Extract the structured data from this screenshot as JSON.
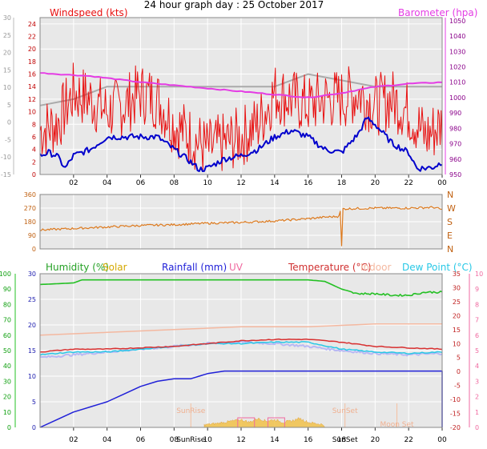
{
  "page_title": "24 hour graph day : 25 October 2017",
  "colors": {
    "wind": "#e81010",
    "gust": "#ff0000",
    "avg": "#0000cc",
    "max": "#aaaaaa",
    "baro": "#e43ce4",
    "dir": "#dd7a1e",
    "hum": "#24c024",
    "solar": "#f2c24a",
    "rain": "#2020d8",
    "uv": "#f06aa0",
    "temp": "#d83030",
    "indoor": "#f4b8a0",
    "dew": "#28c8e6",
    "grid": "#ffffff",
    "plot_bg": "#e8e8e8"
  },
  "chart_data": [
    {
      "type": "line",
      "name": "wind-baro",
      "title": "24 hour graph day : 25 October 2017",
      "left_label": "Windspeed (kts)",
      "right_label": "Barometer (hpa)",
      "x_ticks": [
        "02",
        "04",
        "06",
        "08",
        "10",
        "12",
        "14",
        "16",
        "18",
        "20",
        "22",
        "00"
      ],
      "x_range_hours": [
        0,
        24
      ],
      "y_left_inner_ticks": [
        0,
        2,
        4,
        6,
        8,
        10,
        12,
        14,
        16,
        18,
        20,
        22,
        24
      ],
      "y_left_outer_ticks": [
        -15,
        -10,
        -5,
        0,
        5,
        10,
        15,
        20,
        25,
        30
      ],
      "y_right_ticks": [
        950,
        960,
        970,
        980,
        990,
        1000,
        1010,
        1020,
        1030,
        1040,
        1050
      ],
      "ylim_left": [
        0,
        25
      ],
      "ylim_right": [
        950,
        1052
      ],
      "series": [
        {
          "key": "gust",
          "x": [
            0,
            1,
            2,
            3,
            4,
            5,
            6,
            7,
            8,
            9,
            10,
            11,
            12,
            13,
            14,
            15,
            16,
            17,
            18,
            19,
            20,
            21,
            22,
            23,
            24
          ],
          "y": [
            7,
            8,
            13,
            12,
            10,
            11,
            13,
            12,
            8,
            6,
            4,
            5,
            6,
            8,
            13,
            12,
            11,
            12,
            12,
            13,
            11,
            12,
            10,
            6,
            8
          ]
        },
        {
          "key": "avg",
          "x": [
            0,
            0.5,
            1,
            1.5,
            2,
            3,
            4,
            5,
            6,
            7,
            8,
            9,
            9.5,
            10,
            11,
            12,
            13,
            14,
            15,
            16,
            17,
            18,
            18.5,
            19,
            19.5,
            20,
            21,
            22,
            22.5,
            23,
            23.5,
            24
          ],
          "y": [
            3,
            3.5,
            3,
            1,
            3,
            4,
            6,
            6,
            6,
            6,
            4,
            2,
            0.8,
            1,
            2.5,
            3,
            4,
            6,
            7,
            6,
            4,
            3.5,
            5,
            6.5,
            9,
            8,
            5,
            3.5,
            1,
            1,
            1.2,
            2
          ]
        },
        {
          "key": "max",
          "x": [
            0,
            2,
            4,
            6,
            8,
            10,
            12,
            14,
            16,
            18,
            20,
            22,
            24
          ],
          "y": [
            11,
            12,
            14,
            14,
            14,
            14,
            14,
            14,
            16,
            15,
            14,
            14,
            14
          ]
        },
        {
          "key": "baro",
          "x": [
            0,
            3,
            6,
            9,
            12,
            15,
            16,
            18,
            20,
            22,
            24
          ],
          "y": [
            1016,
            1014,
            1010,
            1007,
            1004,
            1001,
            1000,
            1003,
            1007,
            1009,
            1010
          ]
        }
      ]
    },
    {
      "type": "line",
      "name": "wind-direction",
      "x_ticks": [
        "02",
        "04",
        "06",
        "08",
        "10",
        "12",
        "14",
        "16",
        "18",
        "20",
        "22",
        "00"
      ],
      "x_range_hours": [
        0,
        24
      ],
      "y_left_ticks": [
        0,
        90,
        180,
        270,
        360
      ],
      "y_right_labels": [
        "N",
        "W",
        "S",
        "E",
        "N"
      ],
      "ylim": [
        0,
        360
      ],
      "series": [
        {
          "key": "dir",
          "x": [
            0,
            2,
            4,
            6,
            8,
            10,
            12,
            14,
            16,
            17,
            17.8,
            18,
            20,
            22,
            23.5,
            24
          ],
          "y": [
            125,
            135,
            145,
            155,
            160,
            170,
            175,
            185,
            200,
            210,
            215,
            265,
            270,
            270,
            275,
            260
          ]
        }
      ]
    },
    {
      "type": "line",
      "name": "multi",
      "legend": [
        "Humidity (%)",
        "Solar",
        "Rainfall (mm)",
        "UV",
        "Temperature (°C)",
        "Indoor",
        "Dew Point (°C)"
      ],
      "x_ticks": [
        "02",
        "04",
        "06",
        "08",
        "10",
        "12",
        "14",
        "16",
        "18",
        "20",
        "22",
        "00"
      ],
      "x_range_hours": [
        0,
        24
      ],
      "markers": [
        {
          "label": "SunRise",
          "x": 9.0
        },
        {
          "label": "SunSet",
          "x": 18.2
        },
        {
          "label": "Moon Set",
          "x": 21.3
        }
      ],
      "bottom_marker_labels": [
        "SunRise",
        "SunSet"
      ],
      "y_hum_ticks": [
        0,
        10,
        20,
        30,
        40,
        50,
        60,
        70,
        80,
        90,
        100
      ],
      "y_rain_ticks": [
        0,
        5,
        10,
        15,
        20,
        25,
        30
      ],
      "y_temp_ticks": [
        -20,
        -15,
        -10,
        -5,
        0,
        5,
        10,
        15,
        20,
        25,
        30,
        35
      ],
      "y_uv_ticks": [
        0,
        1,
        2,
        3,
        4,
        5,
        6,
        7,
        8,
        9,
        10
      ],
      "ylim_hum": [
        0,
        100
      ],
      "ylim_rain": [
        0,
        30
      ],
      "ylim_temp": [
        -20,
        35
      ],
      "series": [
        {
          "key": "hum",
          "x": [
            0,
            2,
            2.5,
            4,
            6,
            8,
            10,
            12,
            14,
            16,
            17,
            18,
            19,
            20,
            21,
            22,
            23,
            24
          ],
          "y": [
            93,
            94,
            96,
            96,
            96,
            96,
            96,
            96,
            96,
            96,
            95,
            90,
            87,
            87,
            86,
            86,
            88,
            88
          ]
        },
        {
          "key": "indoor",
          "x": [
            0,
            4,
            8,
            12,
            16,
            20,
            24
          ],
          "y": [
            13,
            14,
            15,
            16,
            16,
            17,
            17
          ]
        },
        {
          "key": "temp",
          "x": [
            0,
            2,
            4,
            6,
            8,
            10,
            12,
            14,
            16,
            18,
            20,
            22,
            24
          ],
          "y": [
            7,
            8,
            8,
            8.5,
            9,
            10,
            11,
            11.5,
            11.5,
            10.5,
            9,
            8.5,
            8
          ]
        },
        {
          "key": "dew",
          "x": [
            0,
            2,
            4,
            6,
            8,
            10,
            12,
            14,
            16,
            18,
            20,
            22,
            24
          ],
          "y": [
            6,
            7,
            7,
            8,
            9,
            10,
            10,
            10.5,
            10.5,
            8,
            7,
            6.5,
            7
          ]
        },
        {
          "key": "dew_shadow",
          "x": [
            0,
            2,
            4,
            6,
            8,
            10,
            12,
            14,
            16,
            18,
            20,
            22,
            24
          ],
          "y": [
            5,
            6,
            7,
            8,
            9,
            10,
            10.5,
            10,
            9,
            7.5,
            6.5,
            6,
            6.5
          ]
        },
        {
          "key": "rain",
          "x": [
            0,
            1,
            2,
            3,
            4,
            5,
            6,
            7,
            8,
            9,
            10,
            11,
            12,
            13,
            14,
            15,
            16,
            17,
            18,
            19,
            20,
            21,
            22,
            23,
            24
          ],
          "y": [
            0,
            1.5,
            3,
            4,
            5,
            6.5,
            8,
            9,
            9.5,
            9.5,
            10.5,
            11,
            11,
            11,
            11,
            11,
            11,
            11,
            11,
            11,
            11,
            11,
            11,
            11,
            11
          ]
        },
        {
          "key": "solar",
          "x": [
            9.8,
            10.5,
            11,
            11.5,
            12,
            12.5,
            13,
            13.5,
            14,
            14.5,
            15,
            15.5,
            16,
            16.5,
            17
          ],
          "y": [
            1,
            2,
            3,
            4,
            5,
            3,
            6,
            4,
            5,
            3,
            4,
            6,
            3,
            2,
            1
          ]
        }
      ]
    }
  ]
}
